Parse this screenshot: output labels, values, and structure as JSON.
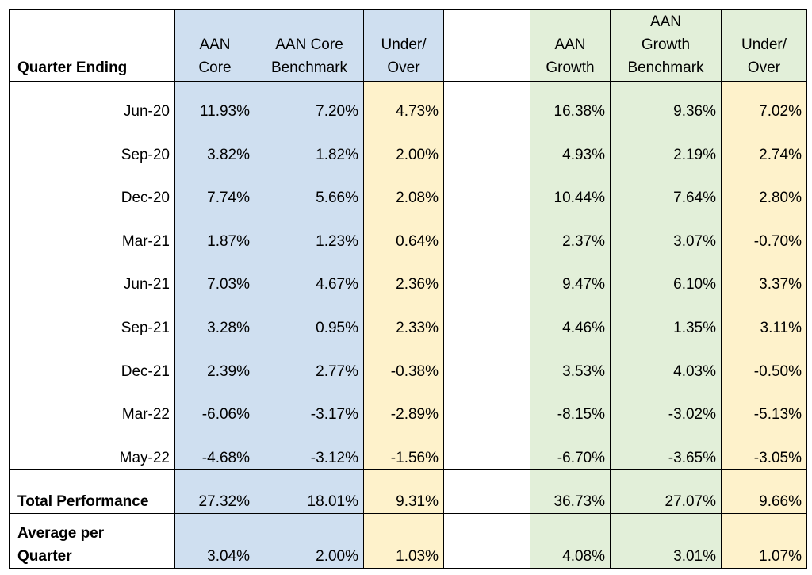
{
  "headers": {
    "quarter": "Quarter Ending",
    "core": [
      "AAN",
      "Core"
    ],
    "core_bench": [
      "AAN Core",
      "Benchmark"
    ],
    "core_diff": [
      "Under/",
      "Over"
    ],
    "growth": [
      "AAN",
      "Growth"
    ],
    "growth_bench": [
      "AAN",
      "Growth",
      "Benchmark"
    ],
    "growth_diff": [
      "Under/",
      "Over"
    ]
  },
  "rows": [
    {
      "q": "Jun-20",
      "core": "11.93%",
      "core_bench": "7.20%",
      "core_diff": "4.73%",
      "growth": "16.38%",
      "growth_bench": "9.36%",
      "growth_diff": "7.02%"
    },
    {
      "q": "Sep-20",
      "core": "3.82%",
      "core_bench": "1.82%",
      "core_diff": "2.00%",
      "growth": "4.93%",
      "growth_bench": "2.19%",
      "growth_diff": "2.74%"
    },
    {
      "q": "Dec-20",
      "core": "7.74%",
      "core_bench": "5.66%",
      "core_diff": "2.08%",
      "growth": "10.44%",
      "growth_bench": "7.64%",
      "growth_diff": "2.80%"
    },
    {
      "q": "Mar-21",
      "core": "1.87%",
      "core_bench": "1.23%",
      "core_diff": "0.64%",
      "growth": "2.37%",
      "growth_bench": "3.07%",
      "growth_diff": "-0.70%"
    },
    {
      "q": "Jun-21",
      "core": "7.03%",
      "core_bench": "4.67%",
      "core_diff": "2.36%",
      "growth": "9.47%",
      "growth_bench": "6.10%",
      "growth_diff": "3.37%"
    },
    {
      "q": "Sep-21",
      "core": "3.28%",
      "core_bench": "0.95%",
      "core_diff": "2.33%",
      "growth": "4.46%",
      "growth_bench": "1.35%",
      "growth_diff": "3.11%"
    },
    {
      "q": "Dec-21",
      "core": "2.39%",
      "core_bench": "2.77%",
      "core_diff": "-0.38%",
      "growth": "3.53%",
      "growth_bench": "4.03%",
      "growth_diff": "-0.50%"
    },
    {
      "q": "Mar-22",
      "core": "-6.06%",
      "core_bench": "-3.17%",
      "core_diff": "-2.89%",
      "growth": "-8.15%",
      "growth_bench": "-3.02%",
      "growth_diff": "-5.13%"
    },
    {
      "q": "May-22",
      "core": "-4.68%",
      "core_bench": "-3.12%",
      "core_diff": "-1.56%",
      "growth": "-6.70%",
      "growth_bench": "-3.65%",
      "growth_diff": "-3.05%"
    }
  ],
  "total": {
    "label": "Total Performance",
    "core": "27.32%",
    "core_bench": "18.01%",
    "core_diff": "9.31%",
    "growth": "36.73%",
    "growth_bench": "27.07%",
    "growth_diff": "9.66%"
  },
  "average": {
    "label": [
      "Average per",
      "Quarter"
    ],
    "core": "3.04%",
    "core_bench": "2.00%",
    "core_diff": "1.03%",
    "growth": "4.08%",
    "growth_bench": "3.01%",
    "growth_diff": "1.07%"
  },
  "colors": {
    "core_fill": "#cfdff0",
    "growth_fill": "#e2efd9",
    "diff_fill": "#fef2cb",
    "underline": "#1f4fd6"
  }
}
